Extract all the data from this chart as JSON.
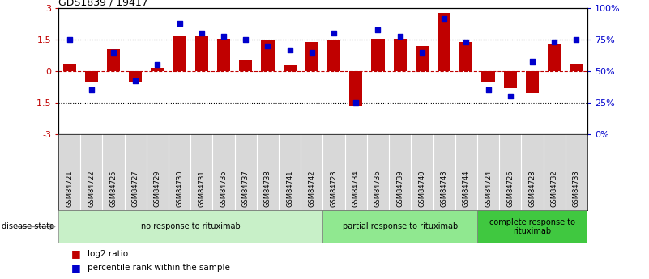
{
  "title": "GDS1839 / 19417",
  "samples": [
    "GSM84721",
    "GSM84722",
    "GSM84725",
    "GSM84727",
    "GSM84729",
    "GSM84730",
    "GSM84731",
    "GSM84735",
    "GSM84737",
    "GSM84738",
    "GSM84741",
    "GSM84742",
    "GSM84723",
    "GSM84734",
    "GSM84736",
    "GSM84739",
    "GSM84740",
    "GSM84743",
    "GSM84744",
    "GSM84724",
    "GSM84726",
    "GSM84728",
    "GSM84732",
    "GSM84733"
  ],
  "log2_ratio": [
    0.35,
    -0.55,
    1.1,
    -0.55,
    0.15,
    1.7,
    1.65,
    1.55,
    0.55,
    1.45,
    0.3,
    1.4,
    1.45,
    -1.65,
    1.55,
    1.55,
    1.2,
    2.8,
    1.4,
    -0.55,
    -0.8,
    -1.05,
    1.3,
    0.35
  ],
  "percentile": [
    75,
    35,
    65,
    42,
    55,
    88,
    80,
    78,
    75,
    70,
    67,
    65,
    80,
    25,
    83,
    78,
    65,
    92,
    73,
    35,
    30,
    58,
    73,
    75
  ],
  "groups": [
    {
      "label": "no response to rituximab",
      "start": 0,
      "end": 12,
      "color": "#c8f0c8"
    },
    {
      "label": "partial response to rituximab",
      "start": 12,
      "end": 19,
      "color": "#90e890"
    },
    {
      "label": "complete response to\nrituximab",
      "start": 19,
      "end": 24,
      "color": "#40c840"
    }
  ],
  "bar_color": "#c00000",
  "dot_color": "#0000cc",
  "ylim_left": [
    -3,
    3
  ],
  "ylim_right": [
    0,
    100
  ],
  "yticks_left": [
    -3,
    -1.5,
    0,
    1.5,
    3
  ],
  "yticks_right": [
    0,
    25,
    50,
    75,
    100
  ],
  "ytick_labels_left": [
    "-3",
    "-1.5",
    "0",
    "1.5",
    "3"
  ],
  "ytick_labels_right": [
    "0%",
    "25%",
    "50%",
    "75%",
    "100%"
  ],
  "hlines": [
    -1.5,
    0,
    1.5
  ],
  "hline_styles": [
    "dotted",
    "dashed",
    "dotted"
  ],
  "legend_items": [
    {
      "label": "log2 ratio",
      "color": "#c00000"
    },
    {
      "label": "percentile rank within the sample",
      "color": "#0000cc"
    }
  ],
  "disease_state_label": "disease state",
  "bar_width": 0.6
}
